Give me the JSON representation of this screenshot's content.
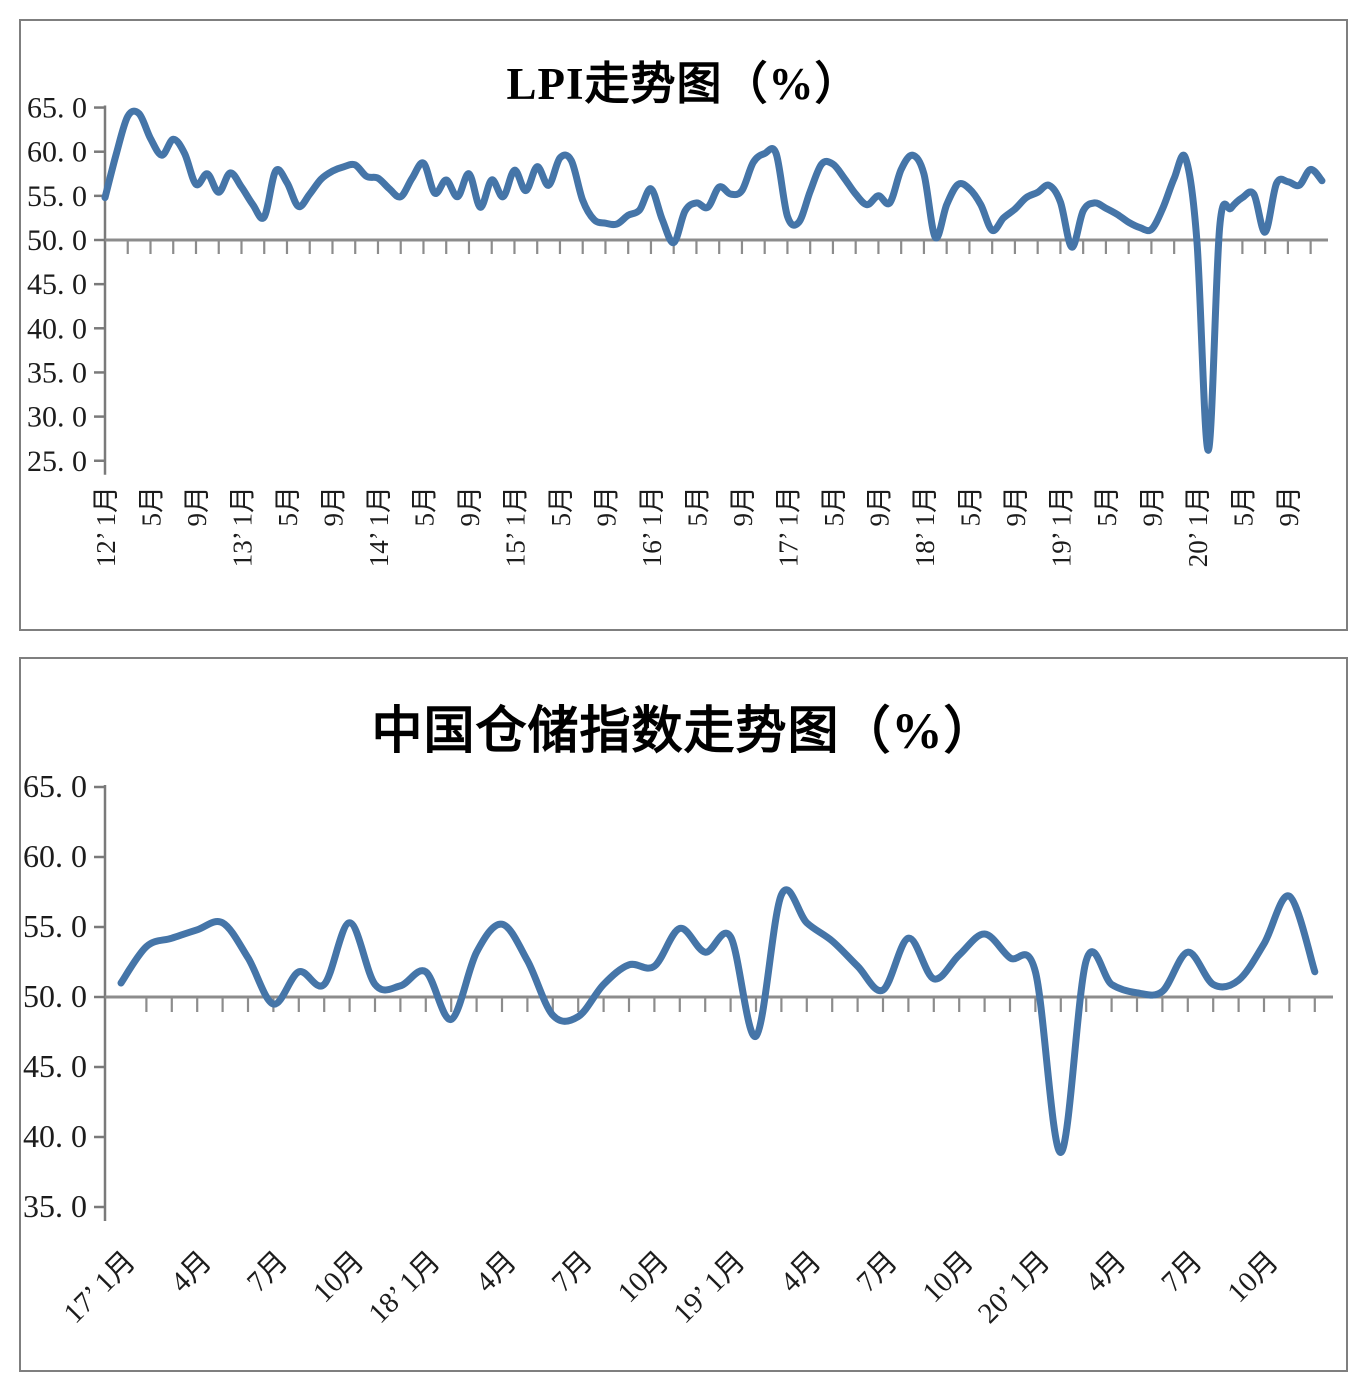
{
  "page": {
    "background": "#ffffff"
  },
  "chart_data": [
    {
      "type": "line",
      "title": "LPI走势图（%）",
      "legend": "none",
      "grid": "none",
      "line_color": "#4575A8",
      "axis_color": "#7a7a7a",
      "text_color": "#1c1c1c",
      "y_axis": {
        "min": 25.0,
        "max": 65.0,
        "step": 5.0,
        "baseline_value": 50.0,
        "tick_labels": [
          "65. 0",
          "60. 0",
          "55. 0",
          "50. 0",
          "45. 0",
          "40. 0",
          "35. 0",
          "30. 0",
          "25. 0"
        ]
      },
      "x_axis": {
        "start_month": "2012-01",
        "months_count": 108,
        "tick_interval_months": 2,
        "labels": [
          {
            "m": 0,
            "year": "12’",
            "text": "1月"
          },
          {
            "m": 4,
            "text": "5月"
          },
          {
            "m": 8,
            "text": "9月"
          },
          {
            "m": 12,
            "year": "13’",
            "text": "1月"
          },
          {
            "m": 16,
            "text": "5月"
          },
          {
            "m": 20,
            "text": "9月"
          },
          {
            "m": 24,
            "year": "14’",
            "text": "1月"
          },
          {
            "m": 28,
            "text": "5月"
          },
          {
            "m": 32,
            "text": "9月"
          },
          {
            "m": 36,
            "year": "15’",
            "text": "1月"
          },
          {
            "m": 40,
            "text": "5月"
          },
          {
            "m": 44,
            "text": "9月"
          },
          {
            "m": 48,
            "year": "16’",
            "text": "1月"
          },
          {
            "m": 52,
            "text": "5月"
          },
          {
            "m": 56,
            "text": "9月"
          },
          {
            "m": 60,
            "year": "17’",
            "text": "1月"
          },
          {
            "m": 64,
            "text": "5月"
          },
          {
            "m": 68,
            "text": "9月"
          },
          {
            "m": 72,
            "year": "18’",
            "text": "1月"
          },
          {
            "m": 76,
            "text": "5月"
          },
          {
            "m": 80,
            "text": "9月"
          },
          {
            "m": 84,
            "year": "19’",
            "text": "1月"
          },
          {
            "m": 88,
            "text": "5月"
          },
          {
            "m": 92,
            "text": "9月"
          },
          {
            "m": 96,
            "year": "20’",
            "text": "1月"
          },
          {
            "m": 100,
            "text": "5月"
          },
          {
            "m": 104,
            "text": "9月"
          }
        ]
      },
      "series": [
        {
          "name": "LPI",
          "start_month": "2012-01",
          "values": [
            54.8,
            59.8,
            64.0,
            64.3,
            61.5,
            59.6,
            61.4,
            59.8,
            56.3,
            57.5,
            55.4,
            57.6,
            56.0,
            54.0,
            52.6,
            57.8,
            56.5,
            53.8,
            55.2,
            56.9,
            57.8,
            58.3,
            58.5,
            57.2,
            57.0,
            55.8,
            54.9,
            57.0,
            58.7,
            55.3,
            56.8,
            54.9,
            57.5,
            53.7,
            56.8,
            54.9,
            57.9,
            55.6,
            58.3,
            56.2,
            59.3,
            59.0,
            54.5,
            52.3,
            51.9,
            51.8,
            52.8,
            53.4,
            55.8,
            52.3,
            49.7,
            53.3,
            54.2,
            53.7,
            56.0,
            55.2,
            55.6,
            58.8,
            59.8,
            59.8,
            52.7,
            52.0,
            55.5,
            58.6,
            58.6,
            57.0,
            55.2,
            54.0,
            55.0,
            54.2,
            58.0,
            59.6,
            57.5,
            50.3,
            54.0,
            56.3,
            55.8,
            54.0,
            51.1,
            52.5,
            53.5,
            54.8,
            55.4,
            56.2,
            54.3,
            49.2,
            53.3,
            54.2,
            53.6,
            52.9,
            52.0,
            51.4,
            51.2,
            53.6,
            57.0,
            59.3,
            49.9,
            26.2,
            51.5,
            53.6,
            54.8,
            55.2,
            50.9,
            56.4,
            56.6,
            56.2,
            58.0,
            56.7
          ]
        }
      ]
    },
    {
      "type": "line",
      "title": "中国仓储指数走势图（%）",
      "legend": "none",
      "grid": "none",
      "line_color": "#4575A8",
      "axis_color": "#7a7a7a",
      "text_color": "#1c1c1c",
      "y_axis": {
        "min": 35.0,
        "max": 65.0,
        "step": 5.0,
        "baseline_value": 50.0,
        "tick_labels": [
          "65. 0",
          "60. 0",
          "55. 0",
          "50. 0",
          "45. 0",
          "40. 0",
          "35. 0"
        ]
      },
      "x_axis": {
        "start_month": "2017-01",
        "months_count": 48,
        "tick_interval_months": 1,
        "labels": [
          {
            "m": 0,
            "year": "17’",
            "text": "1月"
          },
          {
            "m": 3,
            "text": "4月"
          },
          {
            "m": 6,
            "text": "7月"
          },
          {
            "m": 9,
            "text": "10月"
          },
          {
            "m": 12,
            "year": "18’",
            "text": "1月"
          },
          {
            "m": 15,
            "text": "4月"
          },
          {
            "m": 18,
            "text": "7月"
          },
          {
            "m": 21,
            "text": "10月"
          },
          {
            "m": 24,
            "year": "19’",
            "text": "1月"
          },
          {
            "m": 27,
            "text": "4月"
          },
          {
            "m": 30,
            "text": "7月"
          },
          {
            "m": 33,
            "text": "10月"
          },
          {
            "m": 36,
            "year": "20’",
            "text": "1月"
          },
          {
            "m": 39,
            "text": "4月"
          },
          {
            "m": 42,
            "text": "7月"
          },
          {
            "m": 45,
            "text": "10月"
          }
        ]
      },
      "series": [
        {
          "name": "中国仓储指数",
          "start_month": "2017-01",
          "values": [
            51.0,
            53.6,
            54.2,
            54.8,
            55.3,
            52.8,
            49.5,
            51.8,
            50.9,
            55.3,
            50.9,
            50.8,
            51.8,
            48.4,
            53.2,
            55.2,
            52.6,
            48.7,
            48.6,
            50.9,
            52.3,
            52.2,
            54.9,
            53.2,
            54.3,
            47.2,
            57.3,
            55.3,
            54.0,
            52.2,
            50.5,
            54.2,
            51.3,
            53.0,
            54.5,
            52.8,
            51.8,
            38.9,
            52.6,
            50.9,
            50.3,
            50.4,
            53.2,
            50.9,
            51.2,
            53.8,
            57.2,
            51.8
          ]
        }
      ]
    }
  ]
}
